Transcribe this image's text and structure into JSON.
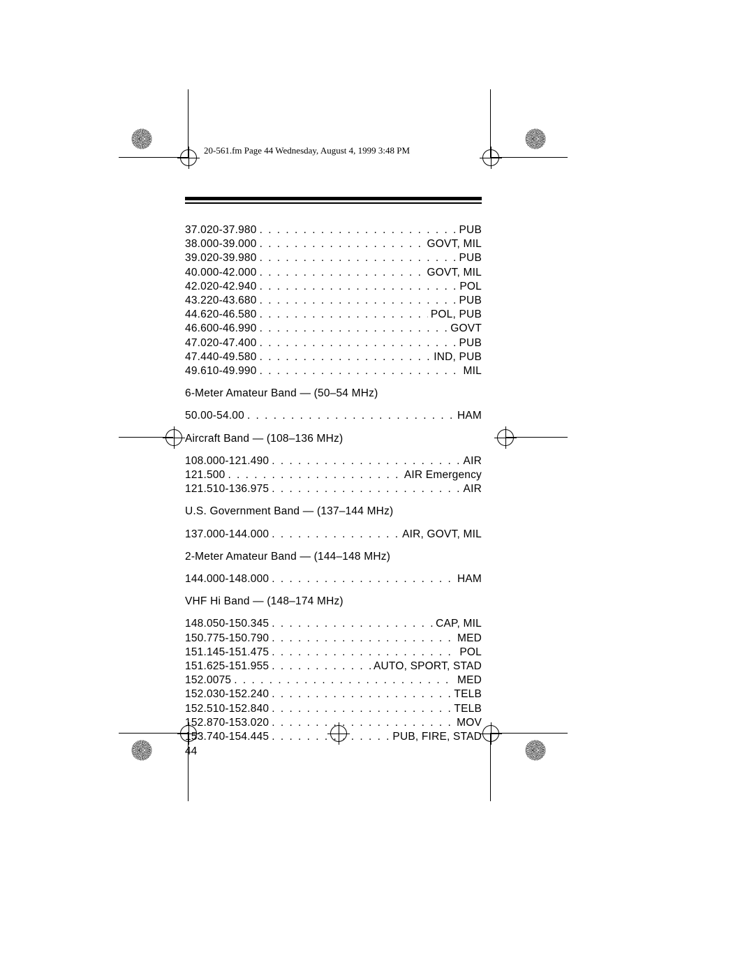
{
  "header": "20-561.fm  Page 44  Wednesday, August 4, 1999  3:48 PM",
  "page_number": "44",
  "sections": [
    {
      "heading": null,
      "rows": [
        {
          "freq": "37.020-37.980",
          "label": "PUB"
        },
        {
          "freq": "38.000-39.000",
          "label": "GOVT, MIL"
        },
        {
          "freq": "39.020-39.980",
          "label": "PUB"
        },
        {
          "freq": "40.000-42.000",
          "label": "GOVT, MIL"
        },
        {
          "freq": "42.020-42.940",
          "label": "POL"
        },
        {
          "freq": "43.220-43.680",
          "label": "PUB"
        },
        {
          "freq": "44.620-46.580",
          "label": "POL, PUB"
        },
        {
          "freq": "46.600-46.990",
          "label": "GOVT"
        },
        {
          "freq": "47.020-47.400",
          "label": "PUB"
        },
        {
          "freq": "47.440-49.580",
          "label": "IND, PUB"
        },
        {
          "freq": "49.610-49.990",
          "label": "MIL"
        }
      ]
    },
    {
      "heading": "6-Meter Amateur Band — (50–54 MHz)",
      "rows": [
        {
          "freq": "50.00-54.00",
          "label": "HAM"
        }
      ]
    },
    {
      "heading": "Aircraft  Band — (108–136 MHz)",
      "rows": [
        {
          "freq": "108.000-121.490",
          "label": "AIR"
        },
        {
          "freq": "121.500",
          "label": "AIR Emergency"
        },
        {
          "freq": "121.510-136.975",
          "label": "AIR"
        }
      ]
    },
    {
      "heading": "U.S. Government Band — (137–144 MHz)",
      "rows": [
        {
          "freq": "137.000-144.000",
          "label": "AIR, GOVT, MIL"
        }
      ]
    },
    {
      "heading": "2-Meter Amateur Band — (144–148 MHz)",
      "rows": [
        {
          "freq": "144.000-148.000",
          "label": "HAM"
        }
      ]
    },
    {
      "heading": "VHF Hi Band — (148–174 MHz)",
      "rows": [
        {
          "freq": "148.050-150.345",
          "label": "CAP, MIL"
        },
        {
          "freq": "150.775-150.790",
          "label": "MED"
        },
        {
          "freq": "151.145-151.475",
          "label": "POL"
        },
        {
          "freq": "151.625-151.955",
          "label": "AUTO, SPORT, STAD"
        },
        {
          "freq": "152.0075",
          "label": "MED"
        },
        {
          "freq": "152.030-152.240",
          "label": "TELB"
        },
        {
          "freq": "152.510-152.840",
          "label": "TELB"
        },
        {
          "freq": "152.870-153.020",
          "label": "MOV"
        },
        {
          "freq": "153.740-154.445",
          "label": "PUB, FIRE, STAD"
        }
      ]
    }
  ]
}
